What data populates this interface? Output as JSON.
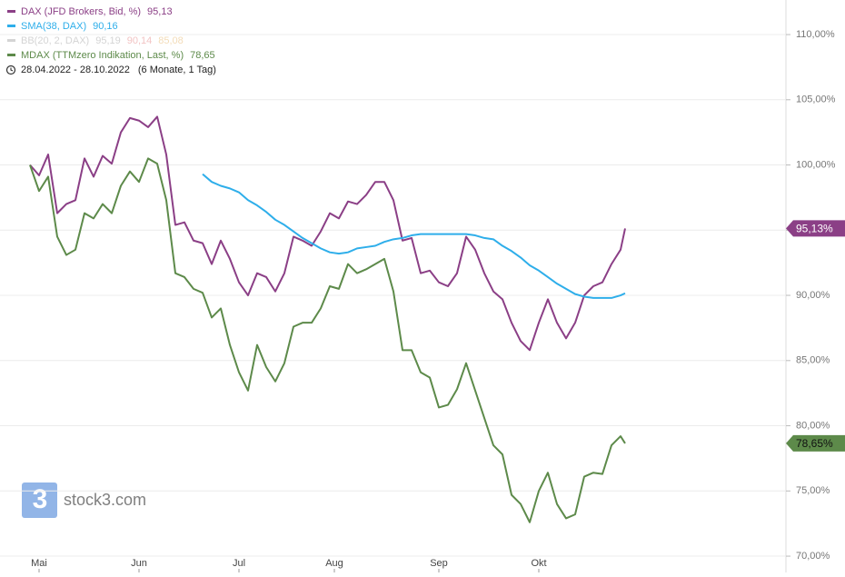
{
  "chart_data": {
    "type": "line",
    "date_range": "28.04.2022 - 28.10.2022",
    "period": "(6 Monate, 1 Tag)",
    "watermark": "stock3.com",
    "x": [
      0,
      2,
      4,
      6,
      8,
      10,
      12,
      14,
      16,
      18,
      20,
      22,
      24,
      26,
      28,
      30,
      32,
      34,
      36,
      38,
      40,
      42,
      44,
      46,
      48,
      50,
      52,
      54,
      56,
      58,
      60,
      62,
      64,
      66,
      68,
      70,
      72,
      74,
      76,
      78,
      80,
      82,
      84,
      86,
      88,
      90,
      92,
      94,
      96,
      98,
      100,
      102,
      104,
      106,
      108,
      110,
      112,
      114,
      116,
      118,
      120,
      122,
      124,
      126,
      128,
      130,
      131
    ],
    "xlim": [
      -6.6,
      166.4
    ],
    "xticks": [
      {
        "value": 2,
        "label": "Mai"
      },
      {
        "value": 24,
        "label": "Jun"
      },
      {
        "value": 46,
        "label": "Jul"
      },
      {
        "value": 67,
        "label": "Aug"
      },
      {
        "value": 90,
        "label": "Sep"
      },
      {
        "value": 112,
        "label": "Okt"
      }
    ],
    "ylim": [
      68.75,
      112.65
    ],
    "yticks": [
      {
        "value": 70,
        "label": "70,00%"
      },
      {
        "value": 75,
        "label": "75,00%"
      },
      {
        "value": 80,
        "label": "80,00%"
      },
      {
        "value": 85,
        "label": "85,00%"
      },
      {
        "value": 90,
        "label": "90,00%"
      },
      {
        "value": 95,
        "label": "95,00%"
      },
      {
        "value": 100,
        "label": "100,00%"
      },
      {
        "value": 105,
        "label": "105,00%"
      },
      {
        "value": 110,
        "label": "110,00%"
      }
    ],
    "grid": true,
    "series": [
      {
        "name": "DAX (JFD Brokers, Bid, %)",
        "color": "#8b3f86",
        "last_label": "95,13",
        "badge_label": "95,13%",
        "values": [
          100.0,
          99.2,
          100.8,
          96.3,
          97.0,
          97.3,
          100.5,
          99.1,
          100.7,
          100.1,
          102.5,
          103.6,
          103.4,
          102.9,
          103.7,
          100.8,
          95.4,
          95.6,
          94.2,
          94.0,
          92.4,
          94.2,
          92.8,
          91.0,
          90.0,
          91.7,
          91.4,
          90.3,
          91.7,
          94.5,
          94.2,
          93.8,
          94.9,
          96.3,
          95.9,
          97.2,
          97.0,
          97.7,
          98.7,
          98.7,
          97.3,
          94.2,
          94.4,
          91.7,
          91.9,
          91.0,
          90.7,
          91.7,
          94.5,
          93.5,
          91.7,
          90.3,
          89.7,
          87.9,
          86.5,
          85.8,
          87.9,
          89.7,
          87.9,
          86.7,
          87.9,
          90.0,
          90.7,
          91.0,
          92.4,
          93.5,
          95.13
        ]
      },
      {
        "name": "SMA(38, DAX)",
        "color": "#2eaeea",
        "last_label": "90,16",
        "values": [
          null,
          null,
          null,
          null,
          null,
          null,
          null,
          null,
          null,
          null,
          null,
          null,
          null,
          null,
          null,
          null,
          null,
          null,
          null,
          99.3,
          98.7,
          98.4,
          98.2,
          97.9,
          97.3,
          96.9,
          96.4,
          95.8,
          95.4,
          94.9,
          94.4,
          94.0,
          93.6,
          93.3,
          93.2,
          93.3,
          93.6,
          93.7,
          93.8,
          94.1,
          94.3,
          94.4,
          94.6,
          94.7,
          94.7,
          94.7,
          94.7,
          94.7,
          94.7,
          94.6,
          94.4,
          94.3,
          93.8,
          93.4,
          92.9,
          92.3,
          91.9,
          91.4,
          90.9,
          90.5,
          90.1,
          89.9,
          89.8,
          89.8,
          89.8,
          90.0,
          90.16
        ]
      },
      {
        "name": "MDAX (TTMzero Indikation, Last, %)",
        "color": "#5d8a4a",
        "last_label": "78,65",
        "badge_label": "78,65%",
        "values": [
          100.0,
          98.0,
          99.1,
          94.5,
          93.1,
          93.5,
          96.3,
          95.9,
          97.0,
          96.3,
          98.4,
          99.5,
          98.7,
          100.5,
          100.1,
          97.3,
          91.7,
          91.4,
          90.5,
          90.2,
          88.3,
          89.0,
          86.2,
          84.1,
          82.7,
          86.2,
          84.5,
          83.4,
          84.8,
          87.6,
          87.9,
          87.9,
          89.0,
          90.7,
          90.5,
          92.4,
          91.7,
          92.0,
          92.4,
          92.8,
          90.3,
          85.8,
          85.8,
          84.1,
          83.7,
          81.4,
          81.6,
          82.8,
          84.8,
          82.7,
          80.6,
          78.5,
          77.8,
          74.7,
          74.0,
          72.6,
          75.0,
          76.4,
          74.0,
          72.9,
          73.2,
          76.1,
          76.4,
          76.3,
          78.5,
          79.2,
          78.65
        ]
      }
    ],
    "legend_extra": {
      "name": "BB(20, 2, DAX)",
      "color": "#d4d4d4",
      "labels": [
        "95,19",
        "90,14",
        "85,08"
      ],
      "label_colors": [
        "#d4d4d4",
        "#f2c4c4",
        "#f3dcb8"
      ]
    }
  }
}
